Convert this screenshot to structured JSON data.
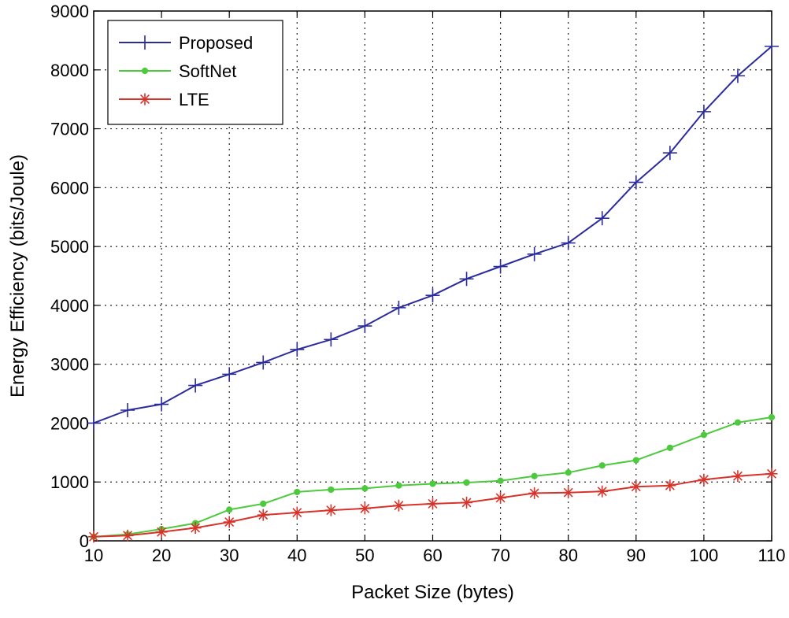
{
  "chart_data": {
    "type": "line",
    "title": "",
    "xlabel": "Packet Size (bytes)",
    "ylabel": "Energy Efficiency (bits/Joule)",
    "xlim": [
      10,
      110
    ],
    "ylim": [
      0,
      9000
    ],
    "xticks": [
      10,
      20,
      30,
      40,
      50,
      60,
      70,
      80,
      90,
      100,
      110
    ],
    "yticks": [
      0,
      1000,
      2000,
      3000,
      4000,
      5000,
      6000,
      7000,
      8000,
      9000
    ],
    "grid": true,
    "legend_position": "top-left",
    "x": [
      10,
      15,
      20,
      25,
      30,
      35,
      40,
      45,
      50,
      55,
      60,
      65,
      70,
      75,
      80,
      85,
      90,
      95,
      100,
      105,
      110
    ],
    "series": [
      {
        "name": "Proposed",
        "color": "#2b2b9e",
        "marker": "plus",
        "values": [
          2000,
          2220,
          2320,
          2640,
          2830,
          3030,
          3250,
          3420,
          3650,
          3960,
          4170,
          4450,
          4660,
          4870,
          5060,
          5480,
          6090,
          6590,
          7290,
          7900,
          8400
        ]
      },
      {
        "name": "SoftNet",
        "color": "#4cc93c",
        "marker": "dot",
        "values": [
          70,
          110,
          200,
          300,
          530,
          630,
          830,
          870,
          890,
          940,
          970,
          990,
          1020,
          1100,
          1160,
          1280,
          1370,
          1580,
          1800,
          2010,
          2100
        ]
      },
      {
        "name": "LTE",
        "color": "#d8332a",
        "marker": "star",
        "values": [
          70,
          90,
          150,
          220,
          320,
          440,
          480,
          520,
          550,
          600,
          630,
          650,
          730,
          810,
          820,
          840,
          920,
          940,
          1040,
          1100,
          1140
        ]
      }
    ]
  }
}
